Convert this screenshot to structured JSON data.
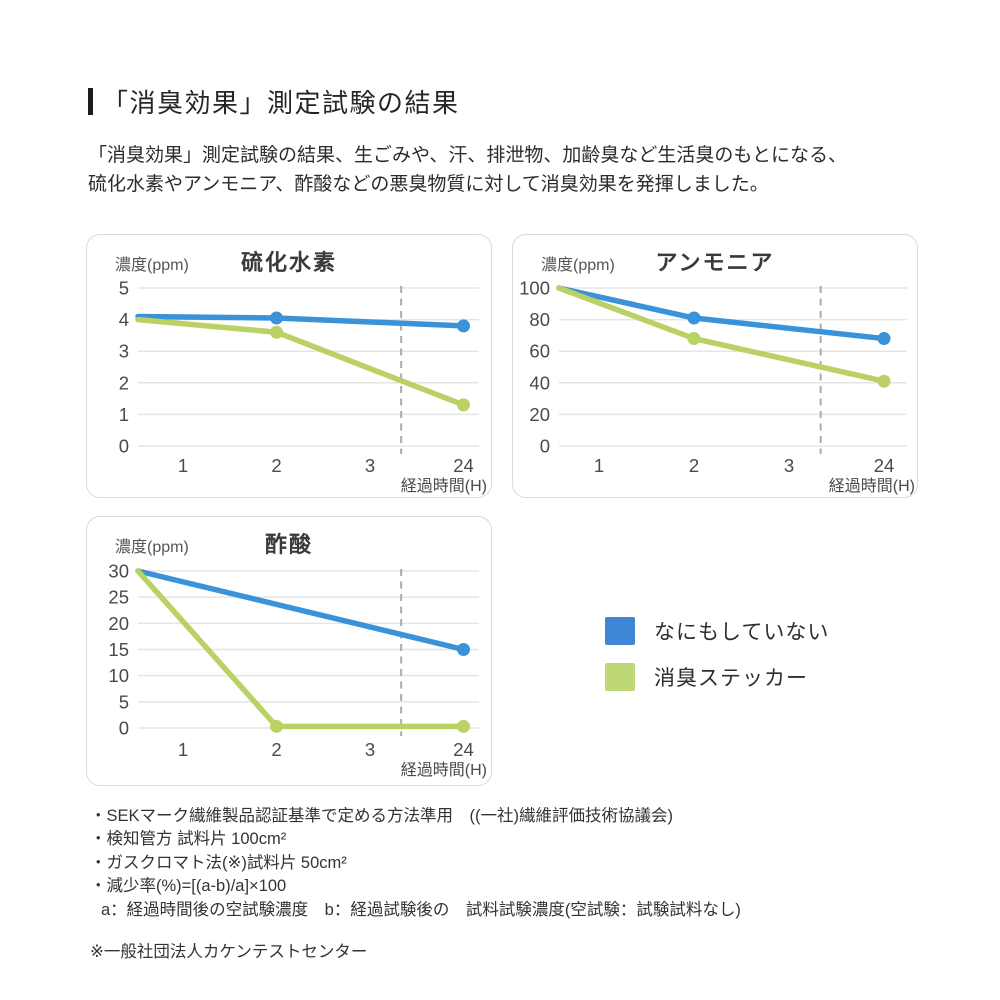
{
  "page": {
    "title": "「消臭効果」測定試験の結果",
    "intro_line1": "「消臭効果」測定試験の結果、生ごみや、汗、排泄物、加齢臭など生活臭のもとになる、",
    "intro_line2": "硫化水素やアンモニア、酢酸などの悪臭物質に対して消臭効果を発揮しました。"
  },
  "colors": {
    "blue": "#3a93d9",
    "green": "#bad164",
    "grid": "#e5e5e5",
    "break_line": "#ababab",
    "tick_text": "#4a4a4a"
  },
  "legend": {
    "items": [
      {
        "label": "なにもしていない",
        "color": "#3f87d6"
      },
      {
        "label": "消臭ステッカー",
        "color": "#bdd874"
      }
    ]
  },
  "chart_data": [
    {
      "type": "line",
      "title": "硫化水素",
      "y_axis_label": "濃度(ppm)",
      "x_axis_label": "経過時間(H)",
      "x_ticks": [
        "1",
        "2",
        "3",
        "24"
      ],
      "y_ticks": [
        5,
        4,
        3,
        2,
        1,
        0
      ],
      "ylim": [
        0,
        5
      ],
      "grid": "horizontal-only",
      "axis_break_after_tick": "3",
      "line_starts_at_plot_left": true,
      "series": [
        {
          "name": "なにもしていない",
          "color": "#3a93d9",
          "x": [
            0,
            2,
            24
          ],
          "values": [
            4.1,
            4.05,
            3.8
          ],
          "dots_at_x": [
            2,
            24
          ]
        },
        {
          "name": "消臭ステッカー",
          "color": "#bad164",
          "x": [
            0,
            2,
            24
          ],
          "values": [
            4.0,
            3.6,
            1.3
          ],
          "dots_at_x": [
            2,
            24
          ]
        }
      ]
    },
    {
      "type": "line",
      "title": "アンモニア",
      "y_axis_label": "濃度(ppm)",
      "x_axis_label": "経過時間(H)",
      "x_ticks": [
        "1",
        "2",
        "3",
        "24"
      ],
      "y_ticks": [
        100,
        80,
        60,
        40,
        20,
        0
      ],
      "ylim": [
        0,
        100
      ],
      "grid": "horizontal-only",
      "axis_break_after_tick": "3",
      "line_starts_at_plot_left": true,
      "series": [
        {
          "name": "なにもしていない",
          "color": "#3a93d9",
          "x": [
            0,
            2,
            24
          ],
          "values": [
            100,
            81,
            68
          ],
          "dots_at_x": [
            2,
            24
          ]
        },
        {
          "name": "消臭ステッカー",
          "color": "#bad164",
          "x": [
            0,
            2,
            24
          ],
          "values": [
            100,
            68,
            41
          ],
          "dots_at_x": [
            2,
            24
          ]
        }
      ]
    },
    {
      "type": "line",
      "title": "酢酸",
      "y_axis_label": "濃度(ppm)",
      "x_axis_label": "経過時間(H)",
      "x_ticks": [
        "1",
        "2",
        "3",
        "24"
      ],
      "y_ticks": [
        30,
        25,
        20,
        15,
        10,
        5,
        0
      ],
      "ylim": [
        0,
        30
      ],
      "grid": "horizontal-only",
      "axis_break_after_tick": "3",
      "line_starts_at_plot_left": true,
      "series": [
        {
          "name": "なにもしていない",
          "color": "#3a93d9",
          "x": [
            0,
            24
          ],
          "values": [
            30,
            15
          ],
          "dots_at_x": [
            24
          ]
        },
        {
          "name": "消臭ステッカー",
          "color": "#bad164",
          "x": [
            0,
            2,
            24
          ],
          "values": [
            30,
            0.3,
            0.3
          ],
          "dots_at_x": [
            2,
            24
          ]
        }
      ]
    }
  ],
  "notes": {
    "bullets": [
      "・SEKマーク繊維製品認証基準で定める方法準用　((一社)繊維評価技術協議会)",
      "・検知管方 試料片 100cm²",
      "・ガスクロマト法(※)試料片 50cm²",
      "・減少率(%)=[(a-b)/a]×100"
    ],
    "sub_line": "a：経過時間後の空試験濃度　b：経過試験後の　試料試験濃度(空試験：試験試料なし)",
    "footnote": "※一般社団法人カケンテストセンター"
  }
}
